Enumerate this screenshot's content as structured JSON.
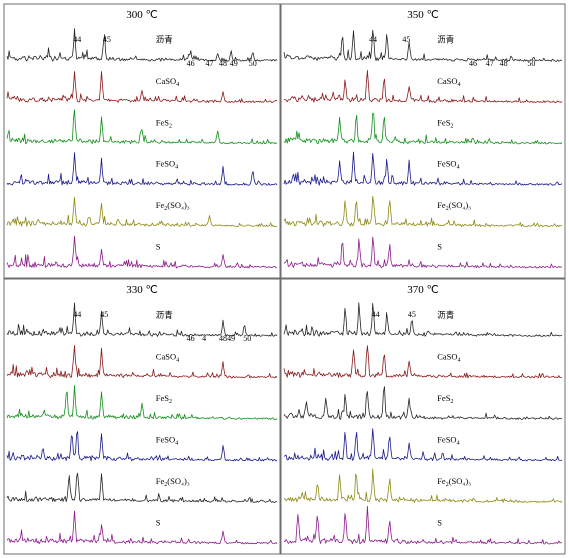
{
  "figure": {
    "colors": {
      "asphalt": "#262626",
      "CaSO4": "#8b1a1a",
      "FeS2": "#13901e",
      "FeSO4": "#1a1a8c",
      "Fe2SO43": "#8f8a16",
      "S": "#8c1c8c"
    }
  },
  "chart_data": [
    {
      "type": "line",
      "title": "300 ℃",
      "series": [
        {
          "name": "沥青",
          "label_main": "沥青",
          "label_sub": "",
          "label_tail": "",
          "color_key": "asphalt",
          "peaks": [
            {
              "x": 0.25,
              "h": 1.0
            },
            {
              "x": 0.36,
              "h": 0.75
            },
            {
              "x": 0.68,
              "h": 0.3
            },
            {
              "x": 0.78,
              "h": 0.25
            },
            {
              "x": 0.83,
              "h": 0.3
            },
            {
              "x": 0.91,
              "h": 0.3
            }
          ]
        },
        {
          "name": "CaSO4",
          "label_main": "CaSO",
          "label_sub": "4",
          "label_tail": "",
          "color_key": "CaSO4",
          "peaks": [
            {
              "x": 0.25,
              "h": 0.95
            },
            {
              "x": 0.35,
              "h": 0.9
            },
            {
              "x": 0.5,
              "h": 0.35
            },
            {
              "x": 0.8,
              "h": 0.35
            }
          ]
        },
        {
          "name": "FeS2",
          "label_main": "FeS",
          "label_sub": "2",
          "label_tail": "",
          "color_key": "FeS2",
          "peaks": [
            {
              "x": 0.25,
              "h": 1.0
            },
            {
              "x": 0.35,
              "h": 0.8
            },
            {
              "x": 0.5,
              "h": 0.45
            },
            {
              "x": 0.78,
              "h": 0.4
            }
          ]
        },
        {
          "name": "FeSO4",
          "label_main": "FeSO",
          "label_sub": "4",
          "label_tail": "",
          "color_key": "FeSO4",
          "peaks": [
            {
              "x": 0.25,
              "h": 1.0
            },
            {
              "x": 0.35,
              "h": 0.8
            },
            {
              "x": 0.8,
              "h": 0.6
            },
            {
              "x": 0.91,
              "h": 0.5
            }
          ]
        },
        {
          "name": "Fe2(SO4)3",
          "label_main": "Fe",
          "label_sub": "2",
          "label_tail": "(SO₄)₃",
          "color_key": "Fe2SO43",
          "peaks": [
            {
              "x": 0.25,
              "h": 0.95
            },
            {
              "x": 0.35,
              "h": 0.75
            },
            {
              "x": 0.75,
              "h": 0.35
            }
          ]
        },
        {
          "name": "S",
          "label_main": "S",
          "label_sub": "",
          "label_tail": "",
          "color_key": "S",
          "peaks": [
            {
              "x": 0.25,
              "h": 1.0
            },
            {
              "x": 0.35,
              "h": 0.55
            },
            {
              "x": 0.8,
              "h": 0.45
            }
          ]
        }
      ],
      "peak_labels": [
        "44",
        "45",
        "46",
        "47",
        "48",
        "49",
        "50"
      ],
      "peak_label_positions": [
        0.26,
        0.37,
        0.68,
        0.75,
        0.8,
        0.84,
        0.91
      ]
    },
    {
      "type": "line",
      "title": "350 ℃",
      "series": [
        {
          "name": "沥青",
          "label_main": "沥青",
          "label_sub": "",
          "label_tail": "",
          "color_key": "asphalt",
          "peaks": [
            {
              "x": 0.21,
              "h": 0.8
            },
            {
              "x": 0.25,
              "h": 0.9
            },
            {
              "x": 0.32,
              "h": 1.0
            },
            {
              "x": 0.37,
              "h": 0.85
            },
            {
              "x": 0.45,
              "h": 0.55
            }
          ]
        },
        {
          "name": "CaSO4",
          "label_main": "CaSO",
          "label_sub": "4",
          "label_tail": "",
          "color_key": "CaSO4",
          "peaks": [
            {
              "x": 0.22,
              "h": 0.7
            },
            {
              "x": 0.3,
              "h": 1.0
            },
            {
              "x": 0.36,
              "h": 0.75
            },
            {
              "x": 0.45,
              "h": 0.5
            }
          ]
        },
        {
          "name": "FeS2",
          "label_main": "FeS",
          "label_sub": "2",
          "label_tail": "",
          "color_key": "FeS2",
          "peaks": [
            {
              "x": 0.2,
              "h": 0.8
            },
            {
              "x": 0.26,
              "h": 0.9
            },
            {
              "x": 0.32,
              "h": 1.0
            },
            {
              "x": 0.36,
              "h": 0.8
            }
          ]
        },
        {
          "name": "FeSO4",
          "label_main": "FeSO",
          "label_sub": "4",
          "label_tail": "",
          "color_key": "FeSO4",
          "peaks": [
            {
              "x": 0.2,
              "h": 0.7
            },
            {
              "x": 0.25,
              "h": 0.9
            },
            {
              "x": 0.32,
              "h": 1.0
            },
            {
              "x": 0.37,
              "h": 0.8
            },
            {
              "x": 0.45,
              "h": 0.6
            }
          ]
        },
        {
          "name": "Fe2(SO4)3",
          "label_main": "Fe",
          "label_sub": "2",
          "label_tail": "(SO₄)₃",
          "color_key": "Fe2SO43",
          "peaks": [
            {
              "x": 0.22,
              "h": 0.8
            },
            {
              "x": 0.26,
              "h": 0.9
            },
            {
              "x": 0.32,
              "h": 1.0
            },
            {
              "x": 0.38,
              "h": 0.8
            }
          ]
        },
        {
          "name": "S",
          "label_main": "S",
          "label_sub": "",
          "label_tail": "",
          "color_key": "S",
          "peaks": [
            {
              "x": 0.21,
              "h": 0.8
            },
            {
              "x": 0.27,
              "h": 0.8
            },
            {
              "x": 0.32,
              "h": 1.0
            },
            {
              "x": 0.38,
              "h": 0.7
            }
          ]
        }
      ],
      "peak_labels": [
        "44",
        "45",
        "46",
        "47",
        "48",
        "50"
      ],
      "peak_label_positions": [
        0.32,
        0.44,
        0.68,
        0.74,
        0.79,
        0.89
      ]
    },
    {
      "type": "line",
      "title": "330 ℃",
      "series": [
        {
          "name": "沥青",
          "label_main": "沥青",
          "label_sub": "",
          "label_tail": "",
          "color_key": "asphalt",
          "peaks": [
            {
              "x": 0.25,
              "h": 1.0
            },
            {
              "x": 0.35,
              "h": 0.75
            },
            {
              "x": 0.8,
              "h": 0.5
            },
            {
              "x": 0.88,
              "h": 0.35
            }
          ]
        },
        {
          "name": "CaSO4",
          "label_main": "CaSO",
          "label_sub": "4",
          "label_tail": "",
          "color_key": "CaSO4",
          "peaks": [
            {
              "x": 0.25,
              "h": 1.0
            },
            {
              "x": 0.35,
              "h": 0.85
            },
            {
              "x": 0.8,
              "h": 0.5
            }
          ]
        },
        {
          "name": "FeS2",
          "label_main": "FeS",
          "label_sub": "2",
          "label_tail": "",
          "color_key": "FeS2",
          "peaks": [
            {
              "x": 0.22,
              "h": 0.8
            },
            {
              "x": 0.25,
              "h": 1.0
            },
            {
              "x": 0.35,
              "h": 0.85
            },
            {
              "x": 0.5,
              "h": 0.45
            }
          ]
        },
        {
          "name": "FeSO4",
          "label_main": "FeSO",
          "label_sub": "4",
          "label_tail": "",
          "color_key": "FeSO4",
          "peaks": [
            {
              "x": 0.24,
              "h": 0.9
            },
            {
              "x": 0.26,
              "h": 1.0
            },
            {
              "x": 0.35,
              "h": 0.8
            },
            {
              "x": 0.8,
              "h": 0.45
            }
          ]
        },
        {
          "name": "Fe2(SO4)3",
          "label_main": "Fe",
          "label_sub": "2",
          "label_tail": "(SO₄)₃",
          "color_key": "asphalt",
          "peaks": [
            {
              "x": 0.23,
              "h": 0.9
            },
            {
              "x": 0.26,
              "h": 1.0
            },
            {
              "x": 0.35,
              "h": 0.85
            }
          ]
        },
        {
          "name": "S",
          "label_main": "S",
          "label_sub": "",
          "label_tail": "",
          "color_key": "S",
          "peaks": [
            {
              "x": 0.25,
              "h": 1.0
            },
            {
              "x": 0.35,
              "h": 0.55
            },
            {
              "x": 0.8,
              "h": 0.4
            }
          ]
        }
      ],
      "peak_labels": [
        "44",
        "45",
        "46",
        "4",
        "48",
        "49",
        "50"
      ],
      "peak_label_positions": [
        0.26,
        0.36,
        0.68,
        0.73,
        0.8,
        0.83,
        0.89
      ]
    },
    {
      "type": "line",
      "title": "370 ℃",
      "series": [
        {
          "name": "沥青",
          "label_main": "沥青",
          "label_sub": "",
          "label_tail": "",
          "color_key": "asphalt",
          "peaks": [
            {
              "x": 0.22,
              "h": 0.8
            },
            {
              "x": 0.27,
              "h": 0.9
            },
            {
              "x": 0.32,
              "h": 1.0
            },
            {
              "x": 0.37,
              "h": 0.7
            },
            {
              "x": 0.46,
              "h": 0.5
            }
          ]
        },
        {
          "name": "CaSO4",
          "label_main": "CaSO",
          "label_sub": "4",
          "label_tail": "",
          "color_key": "CaSO4",
          "peaks": [
            {
              "x": 0.25,
              "h": 0.9
            },
            {
              "x": 0.3,
              "h": 1.0
            },
            {
              "x": 0.36,
              "h": 0.8
            },
            {
              "x": 0.45,
              "h": 0.45
            }
          ]
        },
        {
          "name": "FeS2",
          "label_main": "FeS",
          "label_sub": "2",
          "label_tail": "",
          "color_key": "asphalt",
          "peaks": [
            {
              "x": 0.08,
              "h": 0.5
            },
            {
              "x": 0.15,
              "h": 0.6
            },
            {
              "x": 0.22,
              "h": 0.7
            },
            {
              "x": 0.3,
              "h": 0.9
            },
            {
              "x": 0.36,
              "h": 1.0
            },
            {
              "x": 0.45,
              "h": 0.6
            }
          ]
        },
        {
          "name": "FeSO4",
          "label_main": "FeSO",
          "label_sub": "4",
          "label_tail": "",
          "color_key": "FeSO4",
          "peaks": [
            {
              "x": 0.22,
              "h": 0.8
            },
            {
              "x": 0.26,
              "h": 0.9
            },
            {
              "x": 0.32,
              "h": 1.0
            },
            {
              "x": 0.38,
              "h": 0.8
            },
            {
              "x": 0.45,
              "h": 0.5
            }
          ]
        },
        {
          "name": "Fe2(SO4)3",
          "label_main": "Fe",
          "label_sub": "2",
          "label_tail": "(SO₄)₃",
          "color_key": "Fe2SO43",
          "peaks": [
            {
              "x": 0.12,
              "h": 0.6
            },
            {
              "x": 0.2,
              "h": 0.8
            },
            {
              "x": 0.26,
              "h": 0.9
            },
            {
              "x": 0.32,
              "h": 1.0
            },
            {
              "x": 0.38,
              "h": 0.8
            }
          ]
        },
        {
          "name": "S",
          "label_main": "S",
          "label_sub": "",
          "label_tail": "",
          "color_key": "S",
          "peaks": [
            {
              "x": 0.05,
              "h": 0.9
            },
            {
              "x": 0.12,
              "h": 0.8
            },
            {
              "x": 0.22,
              "h": 0.9
            },
            {
              "x": 0.3,
              "h": 1.0
            },
            {
              "x": 0.38,
              "h": 0.7
            }
          ]
        }
      ],
      "peak_labels": [
        "44",
        "45"
      ],
      "peak_label_positions": [
        0.33,
        0.46
      ]
    }
  ]
}
